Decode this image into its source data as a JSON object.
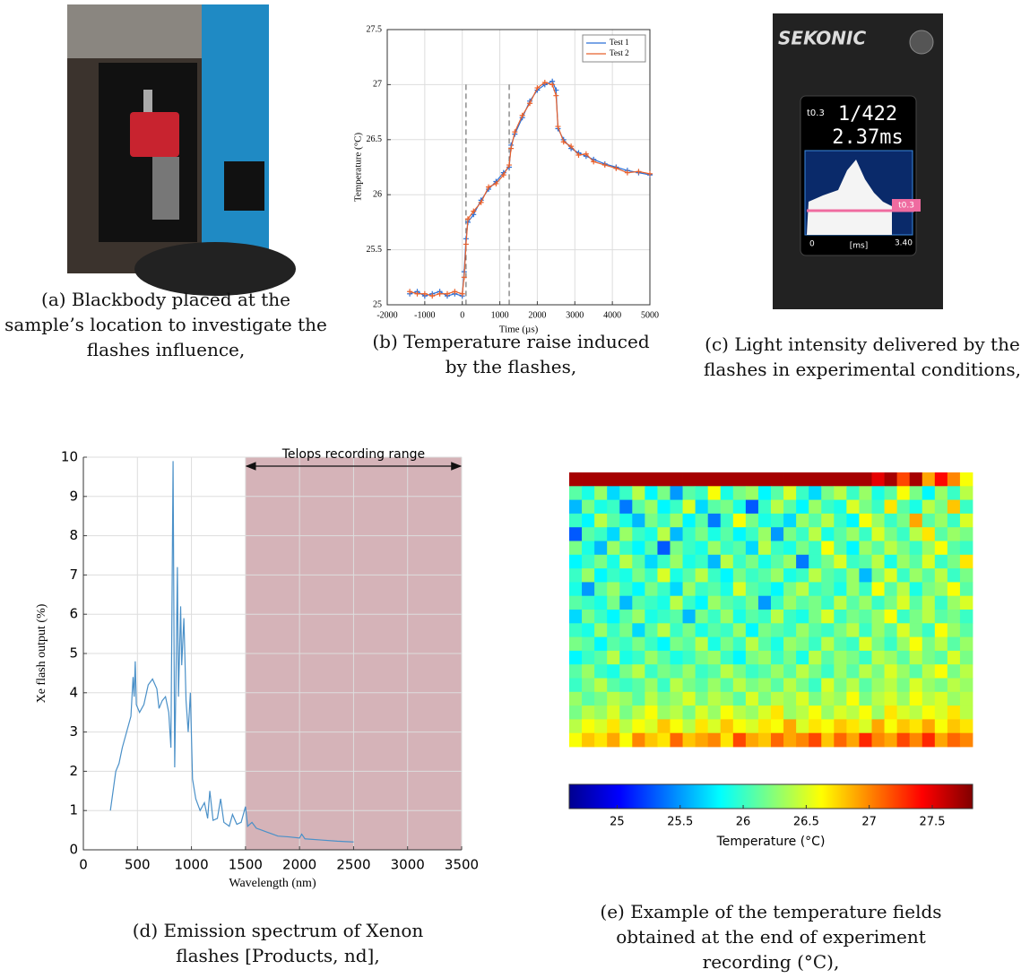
{
  "photos": [
    {
      "caption": "(a) Blackbody placed at the sample’s location to investigate the flashes influence,"
    },
    {
      "caption": "(c) Light intensity delivered by the flashes in experimental conditions,",
      "screen": {
        "brand": "SEKONIC",
        "mode": "t0.3",
        "speed": "1/422",
        "duration": "2.37ms",
        "x_start": "0",
        "x_unit": "[ms]",
        "x_end": "3.40",
        "marker": "t0.3"
      }
    }
  ],
  "chart_data": [
    {
      "type": "line",
      "caption": "(b) Temperature raise induced by the flashes,",
      "xlabel": "Time (µs)",
      "ylabel": "Temperature (°C)",
      "x": [
        -1400,
        -1200,
        -1000,
        -800,
        -600,
        -400,
        -200,
        0,
        50,
        100,
        150,
        300,
        500,
        700,
        900,
        1100,
        1250,
        1300,
        1400,
        1600,
        1800,
        2000,
        2200,
        2400,
        2500,
        2550,
        2700,
        2900,
        3100,
        3300,
        3500,
        3800,
        4100,
        4400,
        4700,
        5000
      ],
      "series": [
        {
          "name": "Test 1",
          "color": "#2a6fd6",
          "values": [
            25.1,
            25.12,
            25.08,
            25.1,
            25.12,
            25.08,
            25.1,
            25.08,
            25.3,
            25.6,
            25.75,
            25.82,
            25.95,
            26.05,
            26.12,
            26.2,
            26.25,
            26.45,
            26.55,
            26.7,
            26.85,
            26.95,
            27.0,
            27.03,
            26.95,
            26.6,
            26.5,
            26.42,
            26.38,
            26.35,
            26.32,
            26.28,
            26.25,
            26.22,
            26.2,
            26.18
          ]
        },
        {
          "name": "Test 2",
          "color": "#e8602c",
          "values": [
            25.12,
            25.1,
            25.1,
            25.08,
            25.1,
            25.1,
            25.12,
            25.1,
            25.25,
            25.55,
            25.78,
            25.85,
            25.93,
            26.07,
            26.1,
            26.18,
            26.27,
            26.42,
            26.57,
            26.72,
            26.83,
            26.97,
            27.02,
            27.0,
            26.9,
            26.62,
            26.48,
            26.44,
            26.36,
            26.37,
            26.3,
            26.27,
            26.24,
            26.2,
            26.21,
            26.19
          ]
        }
      ],
      "xlim": [
        -2000,
        5000
      ],
      "ylim": [
        25,
        27.5
      ],
      "xticks": [
        -2000,
        -1000,
        0,
        1000,
        2000,
        3000,
        4000,
        5000
      ],
      "yticks": [
        25,
        25.5,
        26,
        26.5,
        27,
        27.5
      ],
      "grid": true,
      "legend": "upper right",
      "vlines": [
        100,
        1250
      ]
    },
    {
      "type": "line",
      "caption": "(d) Emission spectrum of Xenon flashes [Products, nd],",
      "xlabel": "Wavelength (nm)",
      "ylabel": "Xe flash output (%)",
      "x": [
        250,
        280,
        300,
        330,
        360,
        400,
        440,
        460,
        470,
        480,
        490,
        520,
        560,
        600,
        640,
        680,
        700,
        730,
        760,
        790,
        810,
        830,
        845,
        860,
        870,
        880,
        900,
        910,
        930,
        950,
        970,
        990,
        1010,
        1040,
        1080,
        1120,
        1150,
        1170,
        1200,
        1240,
        1270,
        1300,
        1350,
        1380,
        1420,
        1460,
        1500,
        1520,
        1560,
        1600,
        1650,
        1700,
        1750,
        1800,
        1900,
        2000,
        2020,
        2050,
        2200,
        2350,
        2500
      ],
      "values": [
        1.0,
        1.6,
        2.0,
        2.2,
        2.6,
        3.0,
        3.4,
        4.4,
        3.9,
        4.8,
        3.7,
        3.5,
        3.7,
        4.2,
        4.35,
        4.1,
        3.6,
        3.8,
        3.9,
        3.5,
        2.6,
        9.9,
        2.1,
        5.0,
        7.2,
        3.9,
        6.2,
        4.7,
        5.9,
        3.8,
        3.0,
        4.0,
        1.8,
        1.3,
        1.0,
        1.2,
        0.8,
        1.5,
        0.75,
        0.8,
        1.3,
        0.7,
        0.6,
        0.9,
        0.65,
        0.7,
        1.1,
        0.6,
        0.7,
        0.55,
        0.5,
        0.45,
        0.4,
        0.35,
        0.33,
        0.3,
        0.4,
        0.28,
        0.25,
        0.22,
        0.2
      ],
      "color": "#4a90c8",
      "xlim": [
        0,
        3500
      ],
      "ylim": [
        0,
        10
      ],
      "xticks": [
        0,
        500,
        1000,
        1500,
        2000,
        2500,
        3000,
        3500
      ],
      "yticks": [
        0,
        1,
        2,
        3,
        4,
        5,
        6,
        7,
        8,
        9,
        10
      ],
      "grid": true,
      "span": {
        "range": [
          1500,
          3500
        ],
        "label": "Telops recording range",
        "color": "#b98088"
      }
    },
    {
      "type": "heatmap",
      "caption": "(e) Example of the temperature fields obtained at the end of experiment recording (°C),",
      "colormap": "jet",
      "clim": [
        24.62,
        27.82
      ],
      "cticks": [
        25,
        25.5,
        26,
        26.5,
        27,
        27.5
      ],
      "clabel": "Temperature (°C)",
      "values": [
        [
          27.7,
          27.7,
          27.7,
          27.7,
          27.7,
          27.7,
          27.7,
          27.7,
          27.7,
          27.7,
          27.7,
          27.7,
          27.7,
          27.7,
          27.7,
          27.7,
          27.7,
          27.7,
          27.7,
          27.7,
          27.7,
          27.7,
          27.7,
          27.7,
          27.5,
          27.7,
          27.2,
          27.7,
          26.9,
          27.4,
          27.0,
          26.6
        ],
        [
          26.1,
          25.9,
          26.3,
          25.7,
          26.0,
          26.4,
          25.8,
          26.2,
          25.5,
          26.1,
          26.0,
          26.6,
          25.9,
          26.2,
          26.3,
          25.8,
          26.1,
          26.5,
          26.0,
          25.7,
          26.2,
          26.4,
          26.0,
          26.3,
          25.9,
          26.1,
          26.6,
          26.2,
          25.8,
          26.3,
          26.0,
          26.4
        ],
        [
          25.6,
          26.2,
          25.9,
          26.0,
          25.4,
          26.1,
          26.3,
          25.8,
          26.0,
          26.5,
          25.7,
          26.1,
          26.2,
          25.9,
          25.3,
          26.0,
          26.4,
          26.1,
          25.8,
          26.3,
          26.0,
          25.9,
          26.5,
          26.2,
          26.0,
          26.7,
          26.1,
          25.9,
          26.4,
          26.2,
          26.8,
          26.0
        ],
        [
          26.0,
          25.8,
          26.4,
          26.1,
          25.9,
          25.6,
          26.2,
          26.0,
          26.3,
          25.8,
          26.1,
          25.4,
          26.0,
          26.6,
          26.2,
          25.9,
          26.0,
          25.7,
          26.3,
          26.1,
          26.4,
          26.0,
          25.8,
          26.6,
          26.3,
          26.0,
          26.2,
          26.9,
          26.1,
          26.3,
          26.0,
          26.5
        ],
        [
          25.3,
          26.1,
          26.0,
          25.7,
          26.3,
          26.0,
          25.9,
          26.4,
          25.6,
          26.0,
          26.2,
          25.9,
          26.1,
          25.8,
          26.0,
          26.3,
          25.5,
          26.2,
          26.0,
          26.4,
          25.9,
          26.1,
          26.3,
          26.0,
          26.5,
          26.2,
          26.0,
          26.4,
          26.7,
          26.1,
          26.3,
          26.2
        ],
        [
          26.2,
          25.9,
          25.6,
          26.3,
          26.0,
          25.8,
          26.1,
          25.3,
          26.2,
          26.0,
          25.9,
          26.3,
          26.0,
          26.1,
          25.7,
          26.4,
          26.0,
          25.9,
          26.2,
          26.0,
          26.6,
          26.1,
          25.8,
          26.3,
          26.1,
          26.4,
          26.2,
          26.0,
          26.3,
          26.6,
          26.1,
          26.0
        ],
        [
          25.8,
          26.0,
          26.2,
          25.9,
          26.4,
          26.1,
          25.7,
          26.0,
          26.3,
          25.9,
          26.0,
          25.6,
          26.4,
          26.0,
          26.2,
          25.9,
          26.1,
          26.3,
          25.4,
          26.0,
          26.2,
          26.5,
          26.0,
          26.1,
          26.4,
          25.9,
          26.3,
          26.1,
          26.5,
          26.0,
          26.2,
          26.7
        ],
        [
          26.0,
          26.3,
          25.8,
          26.0,
          25.9,
          26.2,
          26.0,
          26.5,
          25.9,
          26.1,
          26.4,
          26.0,
          25.8,
          26.2,
          26.0,
          26.1,
          26.3,
          25.9,
          26.0,
          26.4,
          26.1,
          26.0,
          26.3,
          25.6,
          26.2,
          26.5,
          26.0,
          26.3,
          26.1,
          26.4,
          26.0,
          26.2
        ],
        [
          25.9,
          25.5,
          26.1,
          26.3,
          26.0,
          25.8,
          26.2,
          26.0,
          25.7,
          26.3,
          26.0,
          26.1,
          25.9,
          26.5,
          26.1,
          26.0,
          25.8,
          26.2,
          26.4,
          26.0,
          26.1,
          25.9,
          26.3,
          26.0,
          26.6,
          26.1,
          26.4,
          25.9,
          26.2,
          26.3,
          26.6,
          26.1
        ],
        [
          26.1,
          26.0,
          25.9,
          26.2,
          25.6,
          26.1,
          26.0,
          25.9,
          26.4,
          26.0,
          25.8,
          26.3,
          26.1,
          26.0,
          26.2,
          25.5,
          26.0,
          26.3,
          26.1,
          26.2,
          26.0,
          26.4,
          26.1,
          26.3,
          26.0,
          26.2,
          26.5,
          26.1,
          26.4,
          26.0,
          26.3,
          26.5
        ],
        [
          25.7,
          26.2,
          26.0,
          25.8,
          26.1,
          26.3,
          25.9,
          26.0,
          26.1,
          25.6,
          26.2,
          26.0,
          26.3,
          25.9,
          26.1,
          26.0,
          26.4,
          26.0,
          25.9,
          26.2,
          26.5,
          26.0,
          26.2,
          26.1,
          26.3,
          26.6,
          26.0,
          26.2,
          26.4,
          26.1,
          26.2,
          26.0
        ],
        [
          26.0,
          25.9,
          26.3,
          26.0,
          26.2,
          25.7,
          26.1,
          26.4,
          26.0,
          26.2,
          25.9,
          26.1,
          26.0,
          26.3,
          25.8,
          26.2,
          26.1,
          26.0,
          26.3,
          26.1,
          26.0,
          26.2,
          26.4,
          26.0,
          26.3,
          26.1,
          26.5,
          26.2,
          26.0,
          26.6,
          26.3,
          26.1
        ],
        [
          26.2,
          26.1,
          25.8,
          26.1,
          26.0,
          26.2,
          26.0,
          25.8,
          26.2,
          26.1,
          26.4,
          25.9,
          26.2,
          26.0,
          26.4,
          26.1,
          25.9,
          26.3,
          26.2,
          26.0,
          26.4,
          26.1,
          26.0,
          26.5,
          26.2,
          26.0,
          26.3,
          26.6,
          26.2,
          26.4,
          26.1,
          26.3
        ],
        [
          25.8,
          26.0,
          26.1,
          26.4,
          25.9,
          26.0,
          26.3,
          26.1,
          25.9,
          26.0,
          26.2,
          26.3,
          26.0,
          25.8,
          26.2,
          26.3,
          26.0,
          26.2,
          25.9,
          26.4,
          26.1,
          26.3,
          26.2,
          26.0,
          26.4,
          26.3,
          26.1,
          26.4,
          26.2,
          26.1,
          26.5,
          26.2
        ],
        [
          26.1,
          26.3,
          26.0,
          25.9,
          26.2,
          26.4,
          26.0,
          26.2,
          26.1,
          26.3,
          26.0,
          26.1,
          26.4,
          26.2,
          26.0,
          26.1,
          26.3,
          26.1,
          26.4,
          26.2,
          26.0,
          26.3,
          26.1,
          26.4,
          26.2,
          26.5,
          26.3,
          26.1,
          26.4,
          26.6,
          26.2,
          26.4
        ],
        [
          26.0,
          26.2,
          26.4,
          26.1,
          26.0,
          26.1,
          26.3,
          26.0,
          26.4,
          26.2,
          26.1,
          26.3,
          26.1,
          26.4,
          26.2,
          26.3,
          26.1,
          26.4,
          26.2,
          26.0,
          26.5,
          26.2,
          26.4,
          26.1,
          26.3,
          26.4,
          26.2,
          26.5,
          26.3,
          26.2,
          26.4,
          26.3
        ],
        [
          26.3,
          26.1,
          26.2,
          26.4,
          26.3,
          26.1,
          26.4,
          26.2,
          26.3,
          26.5,
          26.2,
          26.4,
          26.3,
          26.1,
          26.5,
          26.2,
          26.4,
          26.3,
          26.5,
          26.2,
          26.4,
          26.3,
          26.6,
          26.2,
          26.4,
          26.5,
          26.3,
          26.6,
          26.4,
          26.5,
          26.3,
          26.4
        ],
        [
          26.2,
          26.4,
          26.3,
          26.5,
          26.2,
          26.4,
          26.6,
          26.3,
          26.4,
          26.2,
          26.5,
          26.3,
          26.6,
          26.4,
          26.3,
          26.5,
          26.7,
          26.3,
          26.4,
          26.6,
          26.3,
          26.5,
          26.4,
          26.6,
          26.3,
          26.7,
          26.5,
          26.4,
          26.6,
          26.5,
          26.7,
          26.4
        ],
        [
          26.4,
          26.6,
          26.5,
          26.7,
          26.4,
          26.6,
          26.5,
          26.8,
          26.6,
          26.4,
          26.7,
          26.5,
          26.8,
          26.6,
          26.5,
          26.7,
          26.6,
          26.9,
          26.5,
          26.7,
          26.6,
          26.8,
          26.7,
          26.5,
          26.9,
          26.6,
          26.8,
          26.7,
          26.9,
          26.6,
          26.8,
          26.7
        ],
        [
          26.6,
          26.8,
          26.7,
          26.9,
          26.6,
          27.0,
          26.8,
          26.7,
          27.1,
          26.8,
          26.9,
          27.0,
          26.7,
          27.2,
          26.9,
          26.8,
          27.1,
          26.9,
          27.0,
          27.2,
          26.8,
          27.1,
          26.9,
          27.3,
          27.0,
          26.9,
          27.2,
          27.0,
          27.3,
          26.9,
          27.1,
          27.0
        ]
      ]
    }
  ]
}
